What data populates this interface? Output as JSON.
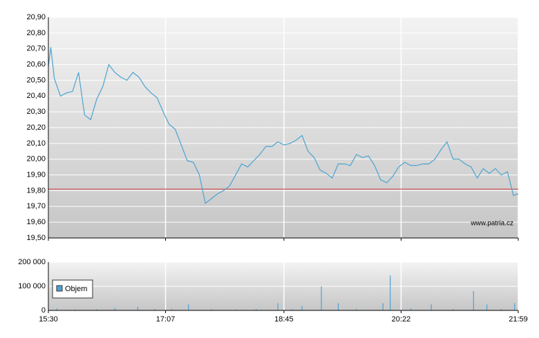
{
  "chart_data": [
    {
      "type": "line",
      "color": "#4aa3d1",
      "xlim": [
        "15:30",
        "21:59"
      ],
      "xticks": [
        "15:30",
        "17:07",
        "18:45",
        "20:22",
        "21:59"
      ],
      "ylim": [
        19.5,
        20.9
      ],
      "yticks": [
        {
          "value": 19.5,
          "label": "19,50"
        },
        {
          "value": 19.6,
          "label": "19,60"
        },
        {
          "value": 19.7,
          "label": "19,70"
        },
        {
          "value": 19.8,
          "label": "19,80"
        },
        {
          "value": 19.9,
          "label": "19,90"
        },
        {
          "value": 20.0,
          "label": "20,00"
        },
        {
          "value": 20.1,
          "label": "20,10"
        },
        {
          "value": 20.2,
          "label": "20,20"
        },
        {
          "value": 20.3,
          "label": "20,30"
        },
        {
          "value": 20.4,
          "label": "20,40"
        },
        {
          "value": 20.5,
          "label": "20,50"
        },
        {
          "value": 20.6,
          "label": "20,60"
        },
        {
          "value": 20.7,
          "label": "20,70"
        },
        {
          "value": 20.8,
          "label": "20,80"
        },
        {
          "value": 20.9,
          "label": "20,90"
        }
      ],
      "grid": true,
      "reference_line": {
        "value": 19.81,
        "color": "#cc3333"
      },
      "watermark": "www.patria.cz",
      "x": [
        "15:30",
        "15:32",
        "15:35",
        "15:40",
        "15:45",
        "15:50",
        "15:55",
        "16:00",
        "16:05",
        "16:10",
        "16:15",
        "16:20",
        "16:25",
        "16:30",
        "16:35",
        "16:40",
        "16:45",
        "16:50",
        "16:55",
        "17:00",
        "17:05",
        "17:10",
        "17:15",
        "17:20",
        "17:25",
        "17:30",
        "17:35",
        "17:40",
        "17:45",
        "17:50",
        "17:55",
        "18:00",
        "18:05",
        "18:10",
        "18:15",
        "18:20",
        "18:25",
        "18:30",
        "18:35",
        "18:40",
        "18:45",
        "18:50",
        "18:55",
        "19:00",
        "19:05",
        "19:10",
        "19:15",
        "19:20",
        "19:25",
        "19:30",
        "19:35",
        "19:40",
        "19:45",
        "19:50",
        "19:55",
        "20:00",
        "20:05",
        "20:10",
        "20:15",
        "20:20",
        "20:25",
        "20:30",
        "20:35",
        "20:40",
        "20:45",
        "20:50",
        "20:55",
        "21:00",
        "21:05",
        "21:10",
        "21:15",
        "21:20",
        "21:25",
        "21:30",
        "21:35",
        "21:40",
        "21:45",
        "21:50",
        "21:55",
        "21:59"
      ],
      "values": [
        20.59,
        20.71,
        20.51,
        20.4,
        20.42,
        20.43,
        20.55,
        20.28,
        20.25,
        20.38,
        20.46,
        20.6,
        20.55,
        20.52,
        20.5,
        20.55,
        20.52,
        20.46,
        20.42,
        20.39,
        20.3,
        20.22,
        20.19,
        20.09,
        19.99,
        19.98,
        19.9,
        19.72,
        19.75,
        19.78,
        19.8,
        19.83,
        19.9,
        19.97,
        19.95,
        19.99,
        20.03,
        20.08,
        20.08,
        20.11,
        20.09,
        20.1,
        20.12,
        20.15,
        20.05,
        20.01,
        19.93,
        19.91,
        19.88,
        19.97,
        19.97,
        19.96,
        20.03,
        20.01,
        20.02,
        19.96,
        19.87,
        19.85,
        19.89,
        19.95,
        19.98,
        19.96,
        19.96,
        19.97,
        19.97,
        20.0,
        20.06,
        20.11,
        20.0,
        20.0,
        19.97,
        19.95,
        19.88,
        19.94,
        19.91,
        19.94,
        19.9,
        19.92,
        19.77,
        19.78
      ]
    },
    {
      "type": "bar",
      "xlim": [
        "15:30",
        "21:59"
      ],
      "xticks": [
        "15:30",
        "17:07",
        "18:45",
        "20:22",
        "21:59"
      ],
      "ylim": [
        0,
        200000
      ],
      "yticks": [
        0,
        {
          "value": 100000,
          "label": "100 000"
        },
        {
          "value": 200000,
          "label": "200 000"
        }
      ],
      "grid": true,
      "legend": "upper left",
      "series": [
        {
          "name": "Objem",
          "color": "#4aa3d1",
          "x": [
            "15:37",
            "15:52",
            "16:10",
            "16:25",
            "16:44",
            "16:58",
            "17:12",
            "17:26",
            "17:45",
            "18:05",
            "18:22",
            "18:40",
            "18:52",
            "19:00",
            "19:16",
            "19:30",
            "19:45",
            "20:07",
            "20:13",
            "20:30",
            "20:47",
            "21:05",
            "21:22",
            "21:33",
            "21:45",
            "21:56"
          ],
          "values": [
            8000,
            4000,
            5000,
            10000,
            15000,
            5000,
            6000,
            25000,
            5000,
            4000,
            6000,
            30000,
            5000,
            18000,
            100000,
            30000,
            6000,
            30000,
            145000,
            8000,
            25000,
            5000,
            80000,
            25000,
            6000,
            30000
          ]
        }
      ]
    }
  ]
}
